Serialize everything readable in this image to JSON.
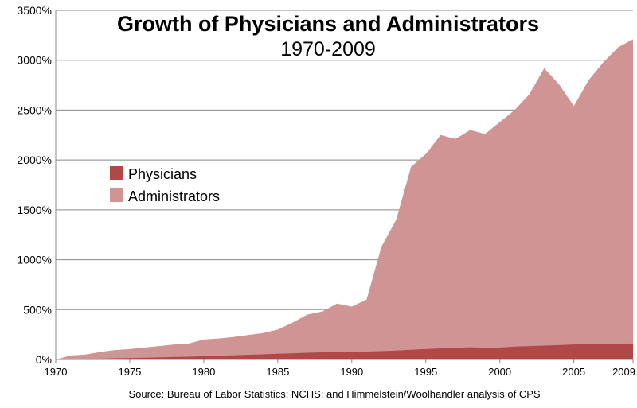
{
  "chart_data": {
    "type": "area",
    "stacked": false,
    "title": "Growth of Physicians and Administrators",
    "subtitle": "1970-2009",
    "xlabel": "",
    "ylabel": "",
    "x": [
      1970,
      1971,
      1972,
      1973,
      1974,
      1975,
      1976,
      1977,
      1978,
      1979,
      1980,
      1981,
      1982,
      1983,
      1984,
      1985,
      1986,
      1987,
      1988,
      1989,
      1990,
      1991,
      1992,
      1993,
      1994,
      1995,
      1996,
      1997,
      1998,
      1999,
      2000,
      2001,
      2002,
      2003,
      2004,
      2005,
      2006,
      2007,
      2008,
      2009
    ],
    "xlim": [
      1970,
      2009
    ],
    "x_ticks": [
      1970,
      1975,
      1980,
      1985,
      1990,
      1995,
      2000,
      2005,
      2009
    ],
    "x_tick_labels": [
      "1970",
      "1975",
      "1980",
      "1985",
      "1990",
      "1995",
      "2000",
      "2005",
      "2009"
    ],
    "ylim": [
      0,
      3500
    ],
    "y_ticks": [
      0,
      500,
      1000,
      1500,
      2000,
      2500,
      3000,
      3500
    ],
    "y_tick_labels": [
      "0%",
      "500%",
      "1000%",
      "1500%",
      "2000%",
      "2500%",
      "3000%",
      "3500%"
    ],
    "grid": true,
    "legend_position": "left",
    "series": [
      {
        "name": "Administrators",
        "color": "#d09494",
        "values": [
          0,
          40,
          50,
          75,
          95,
          105,
          120,
          135,
          150,
          160,
          200,
          210,
          225,
          245,
          265,
          300,
          370,
          450,
          480,
          560,
          530,
          600,
          1130,
          1400,
          1930,
          2060,
          2250,
          2210,
          2300,
          2260,
          2380,
          2500,
          2660,
          2920,
          2760,
          2540,
          2800,
          2980,
          3130,
          3210
        ]
      },
      {
        "name": "Physicians",
        "color": "#b04848",
        "values": [
          0,
          3,
          6,
          9,
          12,
          15,
          18,
          21,
          25,
          28,
          33,
          38,
          42,
          48,
          52,
          58,
          63,
          68,
          72,
          74,
          76,
          80,
          84,
          90,
          98,
          105,
          112,
          118,
          123,
          118,
          120,
          130,
          135,
          140,
          145,
          150,
          155,
          157,
          158,
          160
        ]
      }
    ],
    "legend": [
      "Physicians",
      "Administrators"
    ],
    "source": "Source: Bureau of Labor Statistics; NCHS; and Himmelstein/Woolhandler analysis of CPS"
  }
}
